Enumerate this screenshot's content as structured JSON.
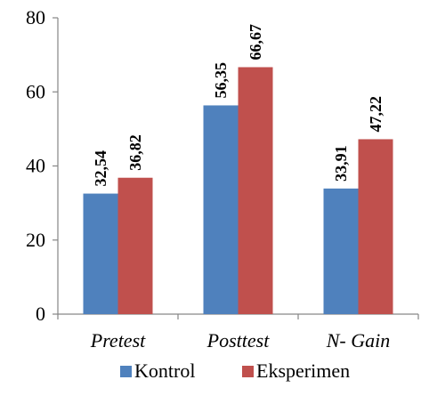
{
  "chart_data": {
    "type": "bar",
    "categories": [
      "Pretest",
      "Posttest",
      "N- Gain"
    ],
    "series": [
      {
        "name": "Kontrol",
        "values": [
          32.54,
          56.35,
          33.91
        ],
        "labels": [
          "32,54",
          "56,35",
          "33,91"
        ],
        "color": "#4F81BD"
      },
      {
        "name": "Eksperimen",
        "values": [
          36.82,
          66.67,
          47.22
        ],
        "labels": [
          "36,82",
          "66,67",
          "47,22"
        ],
        "color": "#C0504D"
      }
    ],
    "ylim": [
      0,
      80
    ],
    "yticks": [
      0,
      20,
      40,
      60,
      80
    ],
    "ytick_labels": [
      "0",
      "20",
      "40",
      "60",
      "80"
    ],
    "legend": "bottom",
    "grid": false
  }
}
